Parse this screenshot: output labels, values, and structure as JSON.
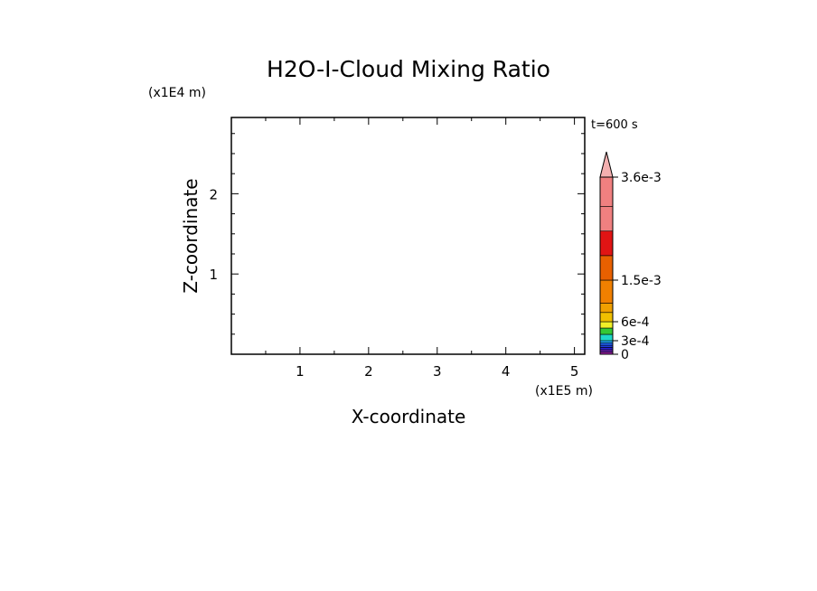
{
  "chart_data": {
    "type": "heatmap",
    "title": "H2O-I-Cloud Mixing Ratio",
    "xlabel": "X-coordinate",
    "ylabel": "Z-coordinate",
    "x_multiplier": "(x1E5 m)",
    "y_multiplier": "(x1E4 m)",
    "time_label": "t=600 s",
    "xlim": [
      0,
      5.15
    ],
    "ylim": [
      0,
      2.95
    ],
    "x_ticks": [
      1,
      2,
      3,
      4,
      5
    ],
    "y_ticks": [
      1,
      2
    ],
    "x_minor_step": 0.5,
    "y_minor_step": 0.25,
    "values": [],
    "colorbar": {
      "levels": [
        0,
        5e-05,
        0.0001,
        0.00015,
        0.0002,
        0.00025,
        0.0003,
        0.0004,
        0.0005,
        0.0006,
        0.0008,
        0.001,
        0.0015,
        0.002,
        0.0025,
        0.003,
        0.0036
      ],
      "colors": [
        "#9b1fa6",
        "#6a1fb8",
        "#2a1fd0",
        "#1f3fe0",
        "#1f66ff",
        "#1fb0ff",
        "#1fd8c8",
        "#34c834",
        "#f0f028",
        "#f0c000",
        "#f0a000",
        "#f08000",
        "#e86000",
        "#e01414",
        "#f08080",
        "#f08080"
      ],
      "extend": "max",
      "labeled_ticks": [
        {
          "value": 0,
          "label": "0"
        },
        {
          "value": 0.0003,
          "label": "3e-4"
        },
        {
          "value": 0.0006,
          "label": "6e-4"
        },
        {
          "value": 0.0015,
          "label": "1.5e-3"
        },
        {
          "value": 0.0036,
          "label": "3.6e-3"
        }
      ],
      "extend_color": "#f4b0b0"
    }
  }
}
